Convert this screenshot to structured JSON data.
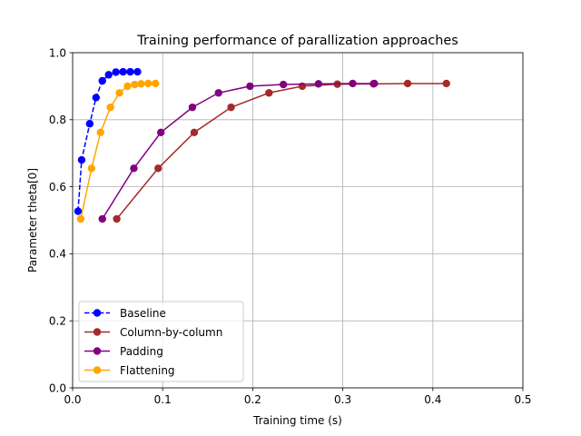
{
  "chart_data": {
    "type": "line",
    "title": "Training performance of parallization approaches",
    "xlabel": "Training time (s)",
    "ylabel": "Parameter theta[0]",
    "xlim": [
      0,
      0.5
    ],
    "ylim": [
      0,
      1.0
    ],
    "xticks": [
      0,
      0.1,
      0.2,
      0.3,
      0.4,
      0.5
    ],
    "xtick_labels": [
      "0.0",
      "0.1",
      "0.2",
      "0.3",
      "0.4",
      "0.5"
    ],
    "yticks": [
      0,
      0.2,
      0.4,
      0.6,
      0.8,
      1.0
    ],
    "ytick_labels": [
      "0.0",
      "0.2",
      "0.4",
      "0.6",
      "0.8",
      "1.0"
    ],
    "grid": true,
    "legend_position": "bottom-left",
    "series": [
      {
        "name": "Baseline",
        "color": "#0000ff",
        "dashed": true,
        "x": [
          0.006,
          0.01,
          0.019,
          0.026,
          0.033,
          0.04,
          0.048,
          0.056,
          0.064,
          0.072
        ],
        "y": [
          0.527,
          0.68,
          0.788,
          0.866,
          0.916,
          0.934,
          0.942,
          0.943,
          0.943,
          0.943
        ]
      },
      {
        "name": "Column-by-column",
        "color": "#a52a2a",
        "dashed": false,
        "x": [
          0.049,
          0.095,
          0.135,
          0.176,
          0.218,
          0.255,
          0.294,
          0.334,
          0.372,
          0.415
        ],
        "y": [
          0.504,
          0.655,
          0.762,
          0.837,
          0.88,
          0.9,
          0.906,
          0.907,
          0.908,
          0.908
        ]
      },
      {
        "name": "Padding",
        "color": "#800080",
        "dashed": false,
        "x": [
          0.033,
          0.068,
          0.098,
          0.133,
          0.162,
          0.197,
          0.234,
          0.273,
          0.311,
          0.335
        ],
        "y": [
          0.504,
          0.655,
          0.762,
          0.837,
          0.88,
          0.9,
          0.905,
          0.907,
          0.908,
          0.908
        ]
      },
      {
        "name": "Flattening",
        "color": "#ffa500",
        "dashed": false,
        "x": [
          0.009,
          0.021,
          0.031,
          0.042,
          0.052,
          0.061,
          0.069,
          0.076,
          0.084,
          0.092
        ],
        "y": [
          0.504,
          0.655,
          0.762,
          0.837,
          0.88,
          0.9,
          0.905,
          0.907,
          0.908,
          0.908
        ]
      }
    ]
  }
}
